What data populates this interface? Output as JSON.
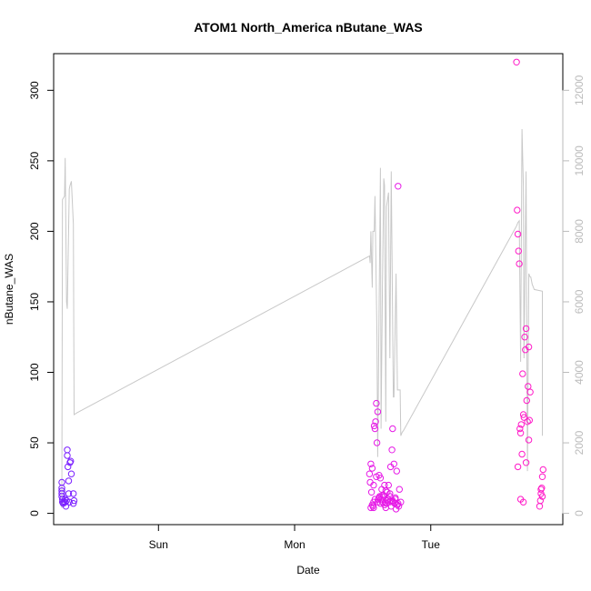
{
  "chart_data": {
    "type": "scatter",
    "title": "ATOM1 North_America nButane_WAS",
    "xlabel": "Date",
    "ylabel": "nButane_WAS",
    "ylabel_right": "",
    "x_unit": "day",
    "x_ticks": [
      {
        "value": 1.0,
        "label": "Sun"
      },
      {
        "value": 2.0,
        "label": "Mon"
      },
      {
        "value": 3.0,
        "label": "Tue"
      }
    ],
    "xlim": [
      0.23,
      3.97
    ],
    "ylim": [
      -8,
      326
    ],
    "yticks": [
      0,
      50,
      100,
      150,
      200,
      250,
      300
    ],
    "ylim_right": [
      -320,
      13040
    ],
    "yticks_right": [
      0,
      2000,
      4000,
      6000,
      8000,
      10000,
      12000
    ],
    "grid": false,
    "legend": "none",
    "colors": {
      "line": "#c8c8c8",
      "early": "#7a1fff",
      "mid": "#e619e6",
      "late": "#ff1ac8",
      "axis": "#000000",
      "right_axis": "#bbbbbb"
    },
    "series": [
      {
        "kind": "line",
        "axis": "right",
        "x": [
          0.29,
          0.295,
          0.31,
          0.315,
          0.325,
          0.33,
          0.345,
          0.35,
          0.36,
          0.375,
          0.38,
          0.4,
          2.55,
          2.555,
          2.56,
          2.57,
          2.575,
          2.585,
          2.59,
          2.605,
          2.61,
          2.63,
          2.635,
          2.645,
          2.655,
          2.66,
          2.67,
          2.675,
          2.69,
          2.7,
          2.71,
          2.725,
          2.73,
          2.745,
          2.755,
          2.76,
          2.775,
          2.78,
          2.79,
          2.8,
          3.63,
          3.64,
          3.65,
          3.66,
          3.67,
          3.68,
          3.685,
          3.7,
          3.71,
          3.72,
          3.73,
          3.735,
          3.745,
          3.76,
          3.82,
          3.82
        ],
        "y": [
          150,
          8900,
          9000,
          10080,
          6000,
          5800,
          9200,
          9300,
          9420,
          8200,
          2800,
          2850,
          7300,
          7100,
          8000,
          6400,
          8000,
          8000,
          9000,
          5000,
          1600,
          9800,
          2400,
          6400,
          9500,
          9300,
          2600,
          8700,
          9100,
          4400,
          9700,
          3300,
          3300,
          6800,
          3500,
          3500,
          3500,
          2200,
          2300,
          2350,
          8150,
          8250,
          8300,
          4300,
          10900,
          9300,
          4400,
          9700,
          1200,
          6800,
          6700,
          6700,
          6500,
          6350,
          6300,
          2200
        ]
      },
      {
        "kind": "points",
        "axis": "left",
        "color_group": "early",
        "x": [
          0.29,
          0.29,
          0.29,
          0.29,
          0.29,
          0.295,
          0.295,
          0.3,
          0.305,
          0.315,
          0.315,
          0.32,
          0.325,
          0.33,
          0.33,
          0.335,
          0.34,
          0.34,
          0.345,
          0.35,
          0.355,
          0.36,
          0.375,
          0.375,
          0.38
        ],
        "y": [
          22,
          18,
          16,
          14,
          12,
          10,
          8,
          7,
          8,
          10,
          8,
          5,
          9,
          45,
          41,
          33,
          23,
          14,
          8,
          36,
          37,
          28,
          14,
          7,
          9
        ]
      },
      {
        "kind": "points",
        "axis": "left",
        "color_group": "mid",
        "x": [
          2.55,
          2.555,
          2.56,
          2.565,
          2.57,
          2.575,
          2.58,
          2.585,
          2.59,
          2.595,
          2.6,
          2.605,
          2.61,
          2.615,
          2.62,
          2.625,
          2.63,
          2.635,
          2.64,
          2.645,
          2.65,
          2.655,
          2.66,
          2.665,
          2.67,
          2.675,
          2.68,
          2.685,
          2.69,
          2.695,
          2.7,
          2.705,
          2.71,
          2.715,
          2.72,
          2.725,
          2.73,
          2.735,
          2.74,
          2.745,
          2.75,
          2.755,
          2.76,
          2.765,
          2.77,
          2.78,
          2.56,
          2.57,
          2.58,
          2.59,
          2.61,
          2.62,
          2.64,
          2.66,
          2.68,
          2.7,
          2.72,
          2.74,
          2.76,
          2.58,
          2.6,
          2.63,
          2.67,
          2.71
        ],
        "y": [
          28,
          22,
          35,
          15,
          32,
          5,
          8,
          62,
          60,
          65,
          78,
          50,
          72,
          10,
          27,
          12,
          25,
          10,
          17,
          8,
          13,
          12,
          20,
          8,
          4,
          7,
          15,
          10,
          20,
          8,
          12,
          33,
          5,
          45,
          60,
          8,
          35,
          7,
          10,
          3,
          30,
          6,
          232,
          5,
          17,
          8,
          4,
          6,
          4,
          10,
          8,
          11,
          12,
          6,
          9,
          14,
          9,
          11,
          7,
          20,
          26,
          7,
          16,
          9
        ]
      },
      {
        "kind": "points",
        "axis": "left",
        "color_group": "late",
        "x": [
          3.63,
          3.635,
          3.64,
          3.645,
          3.65,
          3.655,
          3.66,
          3.665,
          3.67,
          3.675,
          3.68,
          3.685,
          3.69,
          3.695,
          3.7,
          3.705,
          3.71,
          3.715,
          3.72,
          3.725,
          3.73,
          3.64,
          3.66,
          3.68,
          3.7,
          3.72,
          3.8,
          3.805,
          3.81,
          3.815,
          3.82,
          3.825,
          3.82,
          3.81
        ],
        "y": [
          320,
          215,
          198,
          186,
          177,
          60,
          57,
          63,
          42,
          99,
          70,
          68,
          125,
          116,
          131,
          80,
          65,
          90,
          118,
          66,
          86,
          33,
          10,
          8,
          36,
          52,
          5,
          9,
          14,
          18,
          26,
          31,
          12,
          17
        ]
      }
    ]
  }
}
